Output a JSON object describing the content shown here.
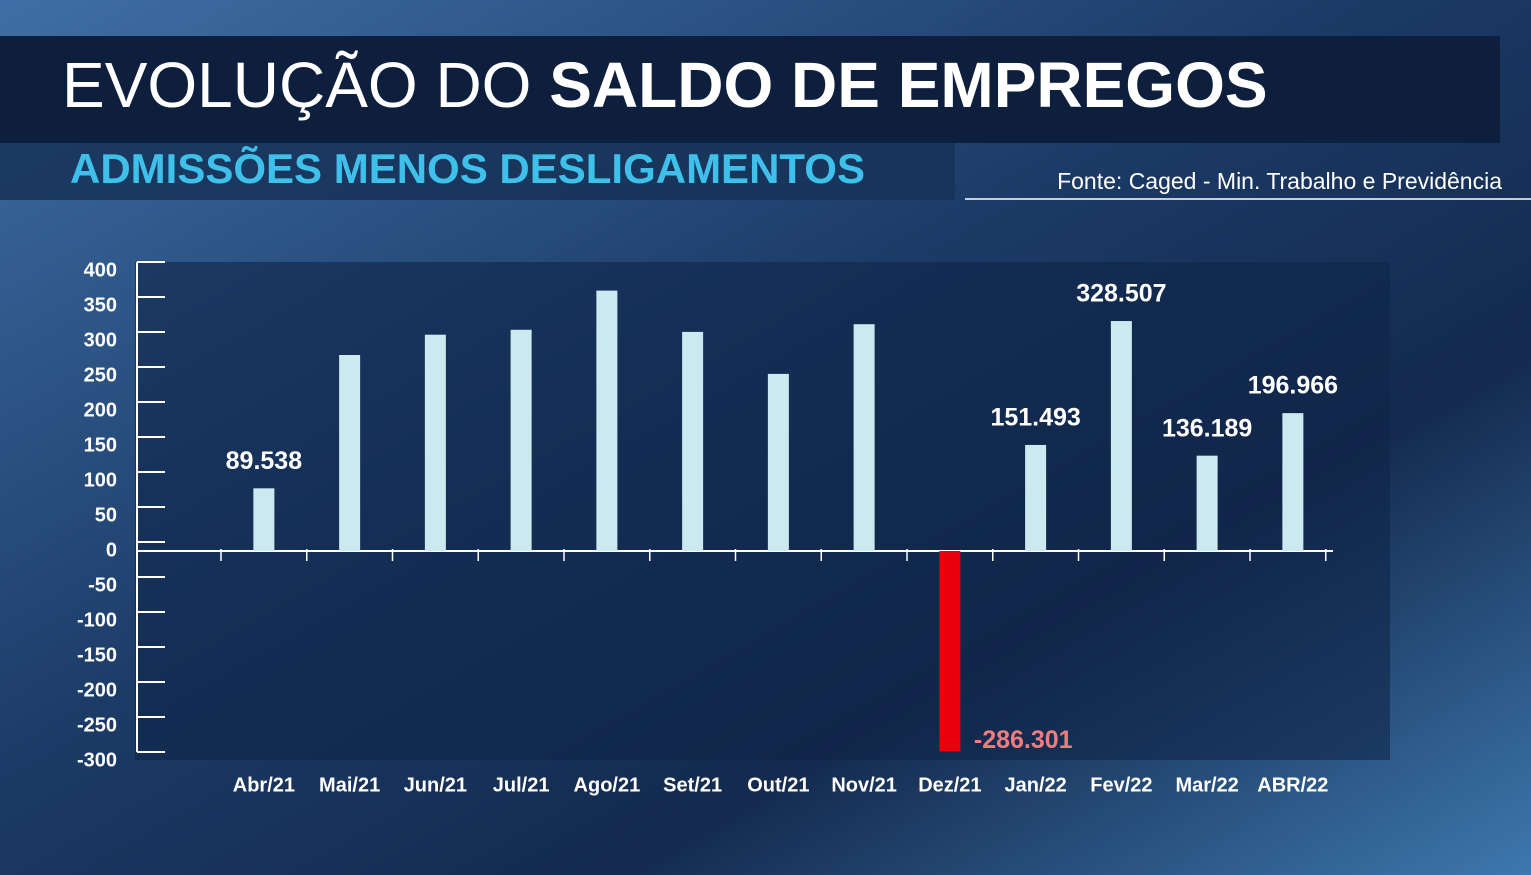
{
  "chart_data": {
    "type": "bar",
    "title": {
      "light": "EVOLUÇÃO DO",
      "bold": "SALDO DE EMPREGOS"
    },
    "subtitle": "ADMISSÕES MENOS DESLIGAMENTOS",
    "source": "Fonte: Caged - Min. Trabalho e Previdência",
    "categories": [
      "Abr/21",
      "Mai/21",
      "Jun/21",
      "Jul/21",
      "Ago/21",
      "Set/21",
      "Out/21",
      "Nov/21",
      "Dez/21",
      "Jan/22",
      "Fev/22",
      "Mar/22",
      "ABR/22"
    ],
    "values": [
      89.538,
      280,
      309,
      316,
      372,
      313,
      253,
      324,
      -286.301,
      151.493,
      328.507,
      136.189,
      196.966
    ],
    "value_labels": [
      "89.538",
      null,
      null,
      null,
      null,
      null,
      null,
      null,
      "-286.301",
      "151.493",
      "328.507",
      "136.189",
      "196.966"
    ],
    "color": "#cde9f0",
    "negative_color": "#e8000b",
    "negative_label_color": "#ef7d7d",
    "ylim": [
      -300,
      400
    ],
    "yticks": [
      -300,
      -250,
      -200,
      -150,
      -100,
      -50,
      0,
      50,
      100,
      150,
      200,
      250,
      300,
      350,
      400
    ]
  }
}
